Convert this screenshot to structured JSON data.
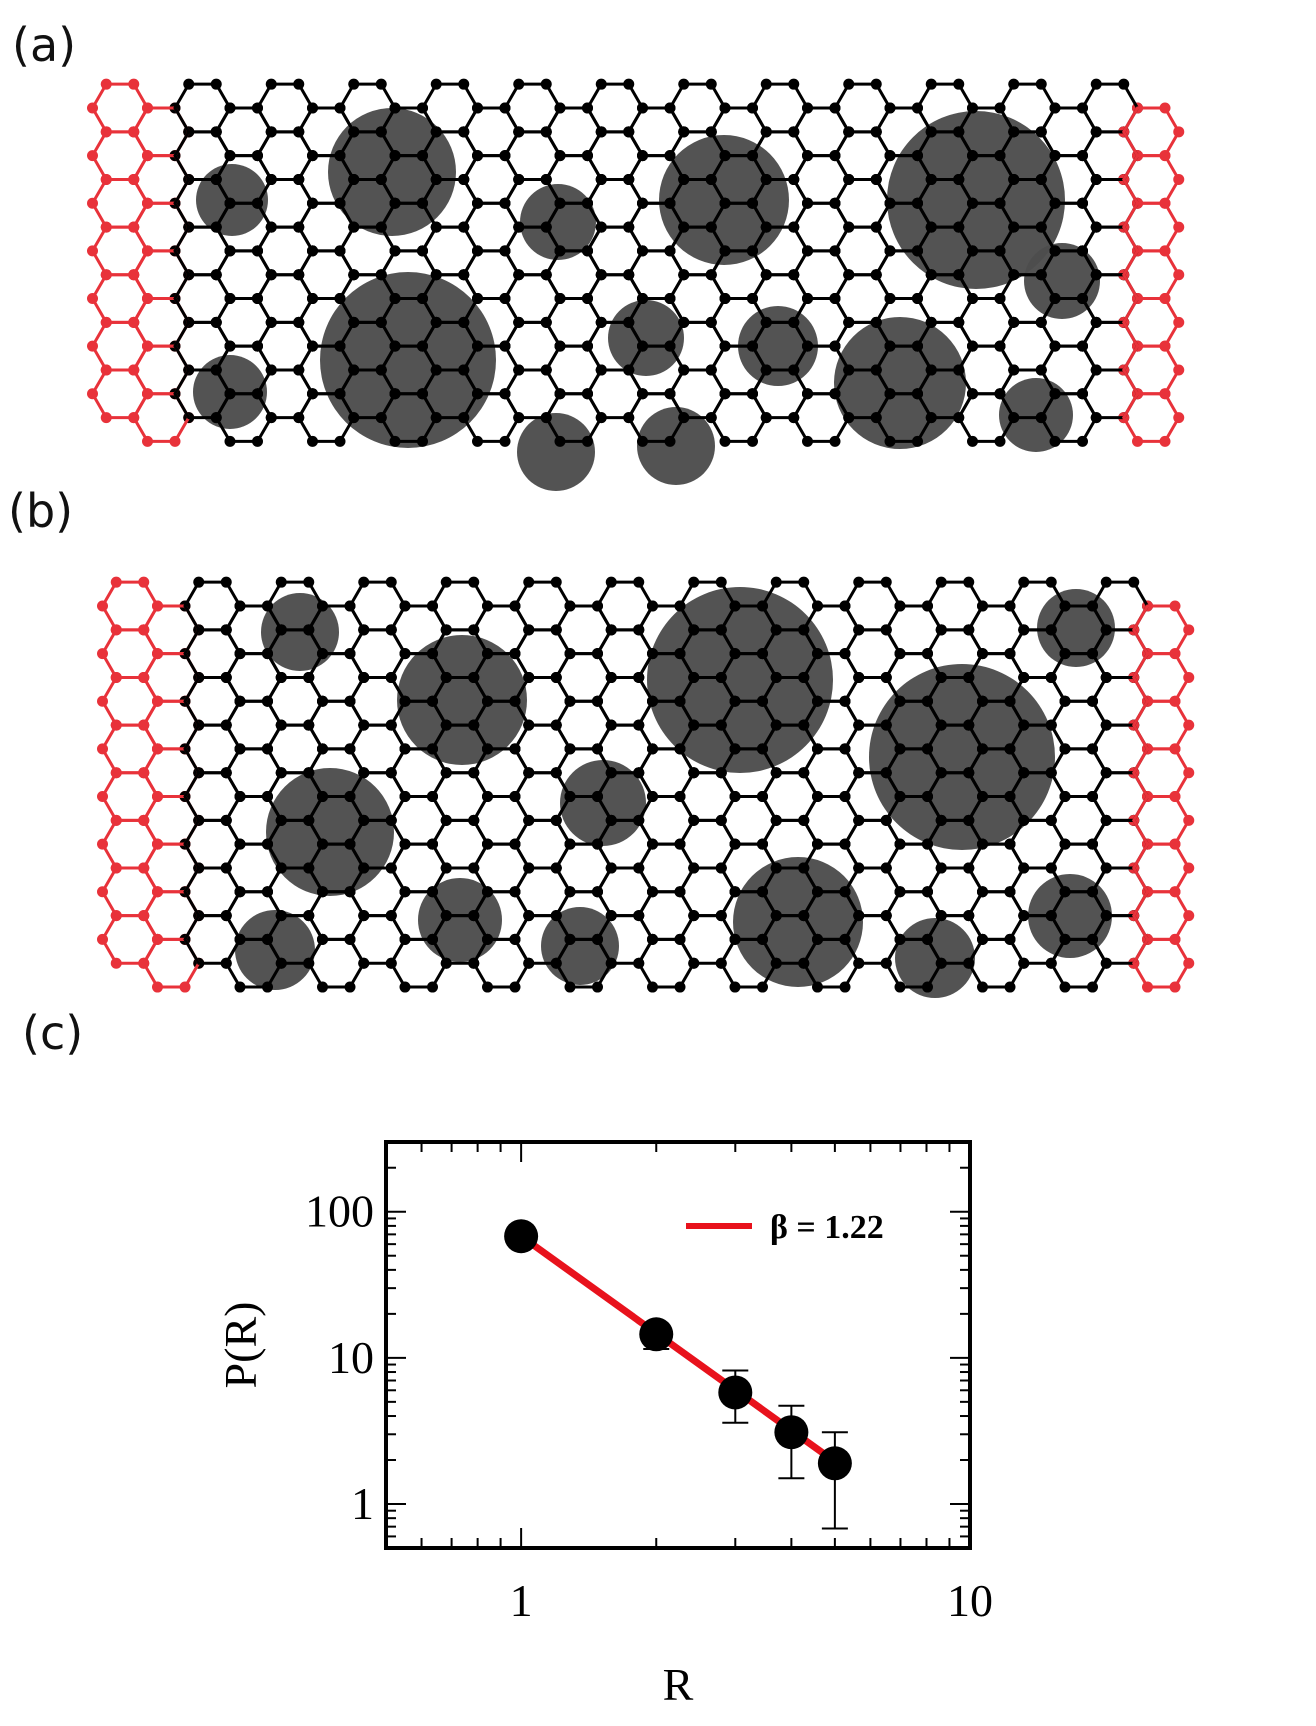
{
  "figure": {
    "panels": [
      {
        "id": "a",
        "label": "(a)"
      },
      {
        "id": "b",
        "label": "(b)"
      },
      {
        "id": "c",
        "label": "(c)"
      }
    ],
    "colors": {
      "lattice": "#000000",
      "lead": "#e8323a",
      "lead_faded": "#f4b4b7",
      "blob": "#4d4d4d",
      "fit_line": "#e8121c"
    }
  },
  "chart_data": {
    "type": "scatter",
    "xscale": "log",
    "yscale": "log",
    "xlabel": "R",
    "ylabel": "P(R)",
    "xlim": [
      0.5,
      10
    ],
    "ylim": [
      0.5,
      300
    ],
    "xticks": [
      {
        "v": 1,
        "label": "1"
      },
      {
        "v": 10,
        "label": "10"
      }
    ],
    "yticks": [
      {
        "v": 1,
        "label": "1"
      },
      {
        "v": 10,
        "label": "10"
      },
      {
        "v": 100,
        "label": "100"
      }
    ],
    "points": [
      {
        "x": 1,
        "y": 68,
        "err_lo": 68,
        "err_hi": 68
      },
      {
        "x": 2,
        "y": 14.5,
        "err_lo": 11.5,
        "err_hi": 17.0
      },
      {
        "x": 3,
        "y": 5.8,
        "err_lo": 3.6,
        "err_hi": 8.2
      },
      {
        "x": 4,
        "y": 3.1,
        "err_lo": 1.5,
        "err_hi": 4.7
      },
      {
        "x": 5,
        "y": 1.9,
        "err_lo": 0.68,
        "err_hi": 3.1
      }
    ],
    "fit": {
      "name": "β = 1.22",
      "x": [
        1,
        5
      ],
      "y": [
        68,
        1.95
      ]
    },
    "legend": "top-right",
    "grid": false
  }
}
